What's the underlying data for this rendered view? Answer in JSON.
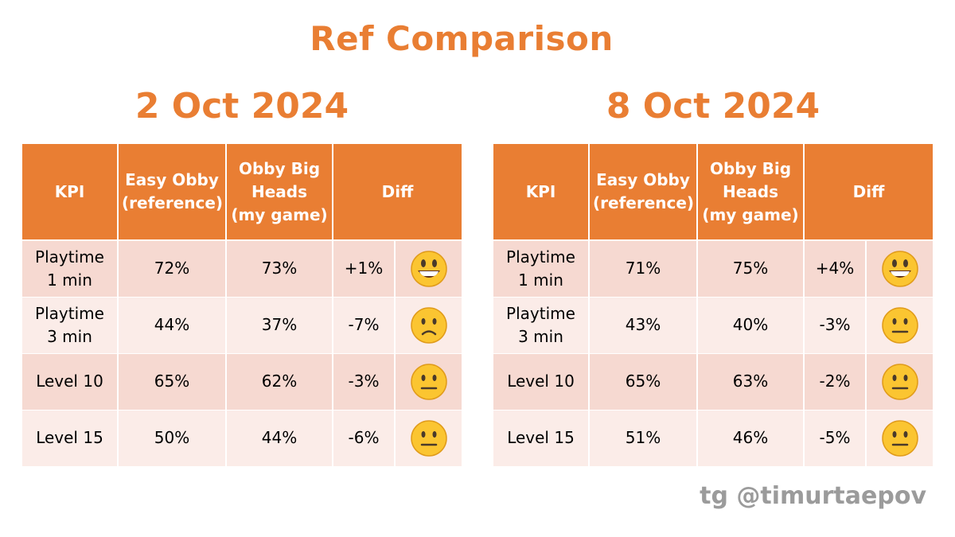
{
  "title": "Ref Comparison",
  "watermark": "tg @timurtaepov",
  "colors": {
    "accent": "#E97E33",
    "row_dark": "#F6D9D1",
    "row_light": "#FBECE8",
    "emoji_face": "#FBC531",
    "watermark": "#9B9B9B"
  },
  "headers": {
    "kpi": "KPI",
    "easy_obby": [
      "Easy Obby",
      "(reference)"
    ],
    "obby_big_heads": [
      "Obby Big",
      "Heads",
      "(my game)"
    ],
    "diff": "Diff"
  },
  "panels": [
    {
      "date": "2 Oct 2024",
      "rows": [
        {
          "kpi": [
            "Playtime",
            "1 min"
          ],
          "ref": "72%",
          "mine": "73%",
          "diff": "+1%",
          "emoji": "grinning-face-icon"
        },
        {
          "kpi": [
            "Playtime",
            "3 min"
          ],
          "ref": "44%",
          "mine": "37%",
          "diff": "-7%",
          "emoji": "slightly-frowning-face-icon"
        },
        {
          "kpi": [
            "Level 10"
          ],
          "ref": "65%",
          "mine": "62%",
          "diff": "-3%",
          "emoji": "neutral-face-icon"
        },
        {
          "kpi": [
            "Level 15"
          ],
          "ref": "50%",
          "mine": "44%",
          "diff": "-6%",
          "emoji": "neutral-face-icon"
        }
      ]
    },
    {
      "date": "8 Oct 2024",
      "rows": [
        {
          "kpi": [
            "Playtime",
            "1 min"
          ],
          "ref": "71%",
          "mine": "75%",
          "diff": "+4%",
          "emoji": "grinning-face-icon"
        },
        {
          "kpi": [
            "Playtime",
            "3 min"
          ],
          "ref": "43%",
          "mine": "40%",
          "diff": "-3%",
          "emoji": "neutral-face-icon"
        },
        {
          "kpi": [
            "Level 10"
          ],
          "ref": "65%",
          "mine": "63%",
          "diff": "-2%",
          "emoji": "neutral-face-icon"
        },
        {
          "kpi": [
            "Level 15"
          ],
          "ref": "51%",
          "mine": "46%",
          "diff": "-5%",
          "emoji": "neutral-face-icon"
        }
      ]
    }
  ]
}
